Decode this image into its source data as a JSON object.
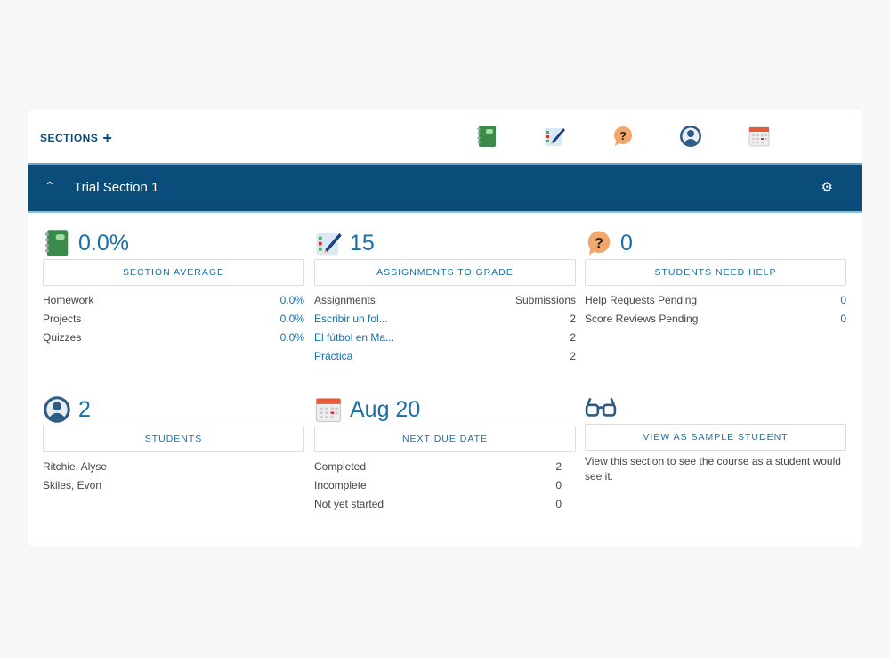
{
  "header": {
    "sections_label": "SECTIONS",
    "add_icon": "plus-icon",
    "icons": [
      "gradebook-icon",
      "assignments-icon",
      "help-icon",
      "student-icon",
      "calendar-icon"
    ]
  },
  "section": {
    "title": "Trial Section 1"
  },
  "colors": {
    "brand": "#0a4d7a",
    "accent": "#1a6fa6"
  },
  "panels": {
    "average": {
      "value": "0.0%",
      "button": "SECTION AVERAGE",
      "rows": [
        {
          "label": "Homework",
          "value": "0.0%"
        },
        {
          "label": "Projects",
          "value": "0.0%"
        },
        {
          "label": "Quizzes",
          "value": "0.0%"
        }
      ]
    },
    "grade": {
      "value": "15",
      "button": "ASSIGNMENTS TO GRADE",
      "col1": "Assignments",
      "col2": "Submissions",
      "rows": [
        {
          "label": "Escribir un fol...",
          "value": "2"
        },
        {
          "label": "El fútbol en Ma...",
          "value": "2"
        },
        {
          "label": "Práctica",
          "value": "2"
        }
      ]
    },
    "help": {
      "value": "0",
      "button": "STUDENTS NEED HELP",
      "rows": [
        {
          "label": "Help Requests Pending",
          "value": "0"
        },
        {
          "label": "Score Reviews Pending",
          "value": "0"
        }
      ]
    },
    "students": {
      "value": "2",
      "button": "STUDENTS",
      "rows": [
        {
          "label": "Ritchie, Alyse"
        },
        {
          "label": "Skiles, Evon"
        }
      ]
    },
    "due": {
      "value": "Aug 20",
      "button": "NEXT DUE DATE",
      "rows": [
        {
          "label": "Completed",
          "value": "2"
        },
        {
          "label": "Incomplete",
          "value": "0"
        },
        {
          "label": "Not yet started",
          "value": "0"
        }
      ]
    },
    "sample": {
      "button": "VIEW AS SAMPLE STUDENT",
      "description": "View this section to see the course as a student would see it."
    }
  }
}
